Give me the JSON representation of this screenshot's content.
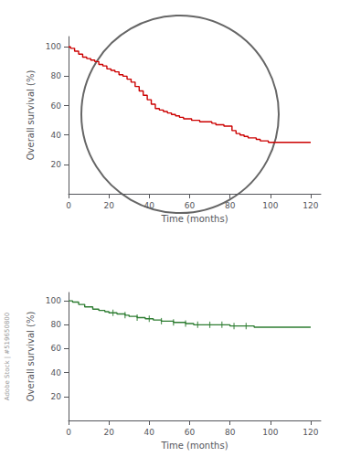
{
  "chart_data": [
    {
      "type": "line",
      "line_style": "step",
      "x": [
        0,
        1,
        3,
        5,
        7,
        9,
        11,
        13,
        15,
        17,
        19,
        21,
        23,
        25,
        27,
        29,
        31,
        33,
        35,
        37,
        39,
        41,
        43,
        45,
        47,
        49,
        51,
        53,
        55,
        57,
        59,
        61,
        63,
        65,
        67,
        69,
        71,
        73,
        75,
        77,
        79,
        81,
        83,
        85,
        87,
        89,
        91,
        93,
        95,
        97,
        99,
        101,
        103,
        105,
        107,
        120
      ],
      "values": [
        100,
        99,
        97,
        95,
        93,
        92,
        91,
        90,
        88,
        87,
        85,
        84,
        83,
        81,
        80,
        78,
        76,
        73,
        70,
        67,
        64,
        61,
        58,
        57,
        56,
        55,
        54,
        53,
        52,
        51,
        51,
        50,
        50,
        49,
        49,
        49,
        48,
        47,
        47,
        46,
        46,
        43,
        41,
        40,
        39,
        38,
        38,
        37,
        36,
        36,
        35,
        35,
        35,
        35,
        35,
        35
      ],
      "color": "#cc0000",
      "xlabel": "Time (months)",
      "ylabel": "Overall survival (%)",
      "xlim": [
        0,
        125
      ],
      "ylim": [
        0,
        107
      ],
      "xticks": [
        0,
        20,
        40,
        60,
        80,
        100,
        120
      ],
      "yticks": [
        20,
        40,
        60,
        80,
        100
      ],
      "grid": false
    },
    {
      "type": "line",
      "line_style": "step",
      "x": [
        0,
        2,
        5,
        8,
        12,
        15,
        18,
        20,
        22,
        24,
        26,
        28,
        30,
        32,
        34,
        36,
        38,
        40,
        42,
        44,
        46,
        48,
        50,
        52,
        54,
        56,
        58,
        60,
        62,
        65,
        68,
        70,
        72,
        75,
        78,
        80,
        82,
        85,
        88,
        90,
        92,
        95,
        98,
        100,
        105,
        110,
        120
      ],
      "values": [
        100,
        99,
        97,
        95,
        93,
        92,
        91,
        90,
        90,
        89,
        89,
        88,
        87,
        87,
        86,
        86,
        85,
        85,
        84,
        84,
        83,
        83,
        83,
        82,
        82,
        82,
        81,
        81,
        80,
        80,
        80,
        80,
        80,
        80,
        80,
        79,
        79,
        79,
        79,
        79,
        78,
        78,
        78,
        78,
        78,
        78,
        78
      ],
      "color": "#2e7d32",
      "censored_x": [
        22,
        28,
        34,
        40,
        46,
        52,
        58,
        64,
        70,
        76,
        82,
        88
      ],
      "censored_values": [
        90,
        88,
        86,
        85,
        83,
        82,
        81,
        80,
        80,
        80,
        79,
        79
      ],
      "xlabel": "Time (months)",
      "ylabel": "Overall survival (%)",
      "xlim": [
        0,
        125
      ],
      "ylim": [
        0,
        107
      ],
      "xticks": [
        0,
        20,
        40,
        60,
        80,
        100,
        120
      ],
      "yticks": [
        20,
        40,
        60,
        80,
        100
      ],
      "grid": false,
      "annotation": "Adobe Stock | #519650800"
    }
  ]
}
